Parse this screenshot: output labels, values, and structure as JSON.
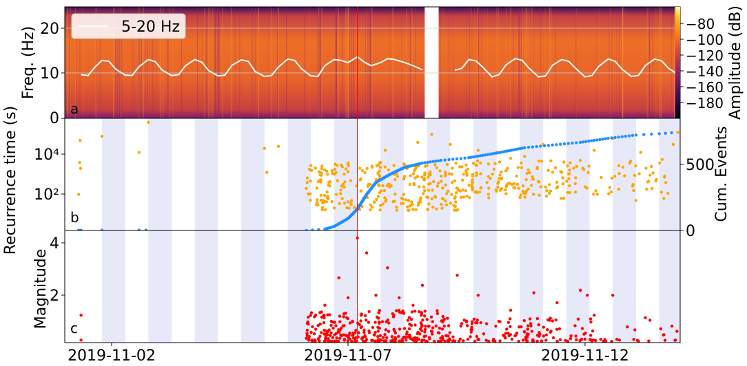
{
  "chart_data": [
    {
      "panel": "a",
      "type": "heatmap",
      "panel_label": "a",
      "ylabel": "Freq. (Hz)",
      "yticks": [
        "0",
        "10",
        "20"
      ],
      "ylim": [
        0,
        25
      ],
      "colorbar_label": "Amplitude (dB)",
      "colorbar_ticks": [
        "−80",
        "−100",
        "−120",
        "−140",
        "−160",
        "−180"
      ],
      "colorbar_range": [
        -190,
        -70
      ],
      "colormap": "inferno",
      "data_gap_days": [
        8.45,
        8.75
      ],
      "red_line_day": 7.0,
      "legend": {
        "label": "5-20 Hz",
        "placement": "top-left",
        "color": "#ffffff"
      },
      "series": [
        {
          "name": "5-20 Hz",
          "x_days": [
            1.05,
            1.2,
            1.35,
            1.5,
            1.65,
            1.8,
            2.0,
            2.15,
            2.3,
            2.5,
            2.65,
            2.8,
            3.0,
            3.15,
            3.3,
            3.5,
            3.65,
            3.8,
            4.0,
            4.15,
            4.3,
            4.5,
            4.65,
            4.8,
            5.0,
            5.15,
            5.3,
            5.5,
            5.65,
            5.8,
            6.0,
            6.15,
            6.3,
            6.5,
            6.65,
            6.8,
            7.0,
            7.15,
            7.3,
            7.5,
            7.65,
            7.8,
            8.0,
            8.2,
            8.4,
            9.1,
            9.25,
            9.4,
            9.55,
            9.7,
            9.9,
            10.05,
            10.2,
            10.4,
            10.55,
            10.7,
            10.9,
            11.05,
            11.2,
            11.4,
            11.55,
            11.7,
            11.9,
            12.05,
            12.2,
            12.4,
            12.55,
            12.7,
            12.9,
            13.05,
            13.2,
            13.4,
            13.55,
            13.7,
            13.85
          ],
          "y_hz": [
            9.8,
            9.6,
            11.5,
            13.0,
            12.8,
            11.0,
            9.7,
            9.6,
            11.6,
            13.2,
            12.7,
            10.8,
            9.6,
            9.8,
            11.8,
            13.2,
            12.6,
            10.7,
            9.5,
            9.7,
            11.9,
            13.1,
            12.8,
            10.5,
            9.4,
            9.6,
            11.5,
            13.3,
            13.0,
            11.1,
            9.5,
            9.4,
            11.8,
            13.2,
            13.0,
            12.5,
            13.8,
            12.6,
            11.8,
            12.5,
            13.4,
            13.2,
            12.6,
            11.8,
            10.9,
            10.8,
            11.2,
            13.2,
            12.9,
            11.5,
            9.3,
            9.8,
            12.0,
            13.4,
            13.0,
            11.2,
            9.3,
            9.5,
            11.9,
            13.2,
            12.8,
            11.2,
            9.3,
            9.6,
            11.7,
            13.3,
            12.8,
            11.0,
            9.4,
            9.6,
            11.8,
            13.3,
            12.9,
            11.2,
            10.2
          ]
        }
      ]
    },
    {
      "panel": "b",
      "type": "scatter",
      "panel_label": "b",
      "ylabel": "Recurrence time (s)",
      "yscale": "log",
      "yticks": [
        "10²",
        "10⁴"
      ],
      "ylim_log10": [
        0.0,
        5.6
      ],
      "y2label": "Cum. Events",
      "y2ticks": [
        "0",
        "500"
      ],
      "y2lim": [
        0,
        840
      ],
      "series": [
        {
          "name": "recurrence",
          "color": "#ffa500",
          "points_day_log10": [
            [
              1.03,
              4.5
            ],
            [
              1.02,
              3.4
            ],
            [
              1.04,
              3.1
            ],
            [
              1.0,
              1.8
            ],
            [
              1.5,
              4.7
            ],
            [
              2.3,
              3.9
            ],
            [
              2.5,
              5.4
            ],
            [
              5.0,
              4.1
            ],
            [
              5.05,
              2.9
            ],
            [
              5.3,
              4.2
            ],
            [
              5.9,
              2.1
            ],
            [
              7.5,
              3.4
            ],
            [
              7.6,
              4.0
            ],
            [
              8.0,
              1.8
            ],
            [
              8.3,
              4.4
            ],
            [
              8.6,
              4.8
            ],
            [
              9.0,
              4.3
            ],
            [
              9.6,
              4.0
            ],
            [
              10.0,
              3.9
            ],
            [
              10.3,
              3.6
            ],
            [
              10.6,
              3.7
            ],
            [
              11.0,
              4.3
            ],
            [
              11.4,
              2.9
            ],
            [
              11.8,
              3.5
            ],
            [
              12.1,
              4.0
            ],
            [
              12.5,
              4.6
            ],
            [
              13.0,
              1.5
            ],
            [
              13.1,
              3.9
            ],
            [
              13.6,
              1.6
            ],
            [
              13.8,
              4.3
            ],
            [
              13.9,
              4.9
            ]
          ],
          "clusters": [
            {
              "x_range": [
                5.9,
                9.2
              ],
              "y_log10_range": [
                1.0,
                3.4
              ],
              "count": 260
            },
            {
              "x_range": [
                9.2,
                11.6
              ],
              "y_log10_range": [
                1.6,
                3.5
              ],
              "count": 140
            },
            {
              "x_range": [
                11.6,
                13.7
              ],
              "y_log10_range": [
                1.8,
                3.6
              ],
              "count": 50
            }
          ]
        },
        {
          "name": "cumulative",
          "color": "#1e90ff",
          "axis": "y2",
          "curve_day_count": [
            [
              5.9,
              0
            ],
            [
              6.3,
              10
            ],
            [
              6.5,
              30
            ],
            [
              6.8,
              90
            ],
            [
              7.0,
              160
            ],
            [
              7.2,
              270
            ],
            [
              7.4,
              360
            ],
            [
              7.7,
              420
            ],
            [
              8.0,
              470
            ],
            [
              8.4,
              505
            ],
            [
              8.8,
              525
            ],
            [
              9.4,
              545
            ],
            [
              10.0,
              580
            ],
            [
              10.6,
              620
            ],
            [
              11.2,
              640
            ],
            [
              11.8,
              660
            ],
            [
              12.4,
              690
            ],
            [
              13.0,
              715
            ],
            [
              13.5,
              725
            ],
            [
              13.9,
              735
            ]
          ],
          "early_points_day_count": [
            [
              1.0,
              2
            ],
            [
              1.05,
              2
            ],
            [
              1.5,
              2
            ],
            [
              2.3,
              3
            ],
            [
              2.45,
              3
            ]
          ]
        }
      ]
    },
    {
      "panel": "c",
      "type": "scatter",
      "panel_label": "c",
      "ylabel": "Magnitude",
      "yticks": [
        "2",
        "4"
      ],
      "ylim": [
        0,
        4.5
      ],
      "xticks": [
        "2019-11-02",
        "2019-11-07",
        "2019-11-12"
      ],
      "xtick_days": [
        2,
        7,
        12
      ],
      "xlim_days": [
        0.7,
        13.95
      ],
      "series": [
        {
          "name": "magnitude",
          "color": "#ff0000",
          "points_day_mag": [
            [
              1.05,
              1.1
            ],
            [
              1.05,
              0.1
            ],
            [
              7.0,
              4.2
            ],
            [
              7.2,
              3.6
            ],
            [
              7.4,
              1.9
            ],
            [
              7.65,
              3.0
            ],
            [
              7.9,
              1.8
            ],
            [
              8.2,
              1.5
            ],
            [
              8.4,
              2.3
            ],
            [
              6.6,
              2.6
            ],
            [
              6.8,
              1.8
            ],
            [
              6.3,
              1.5
            ],
            [
              9.15,
              2.7
            ],
            [
              9.6,
              1.9
            ],
            [
              10.3,
              1.3
            ],
            [
              10.8,
              2.0
            ],
            [
              11.3,
              1.6
            ],
            [
              11.8,
              2.1
            ],
            [
              11.95,
              1.9
            ],
            [
              12.1,
              1.1
            ],
            [
              12.5,
              1.9
            ],
            [
              13.2,
              1.0
            ],
            [
              13.3,
              0.9
            ],
            [
              13.85,
              0.1
            ]
          ],
          "clusters": [
            {
              "x_range": [
                5.9,
                9.0
              ],
              "mag_range": [
                0.05,
                1.3
              ],
              "count": 320
            },
            {
              "x_range": [
                9.0,
                12.2
              ],
              "mag_range": [
                0.05,
                1.0
              ],
              "count": 130
            },
            {
              "x_range": [
                12.2,
                13.9
              ],
              "mag_range": [
                0.05,
                0.7
              ],
              "count": 20
            }
          ]
        }
      ],
      "red_line_day": 7.0
    }
  ],
  "shading": {
    "color": "#e8e9f8",
    "night_intervals_days": [
      [
        1.5,
        2.0
      ],
      [
        2.5,
        3.0
      ],
      [
        3.5,
        4.0
      ],
      [
        4.5,
        5.0
      ],
      [
        5.5,
        6.0
      ],
      [
        6.5,
        7.0
      ],
      [
        7.5,
        8.0
      ],
      [
        8.5,
        9.0
      ],
      [
        9.5,
        10.0
      ],
      [
        10.5,
        11.0
      ],
      [
        11.5,
        12.0
      ],
      [
        12.5,
        13.0
      ],
      [
        13.5,
        14.0
      ]
    ]
  }
}
